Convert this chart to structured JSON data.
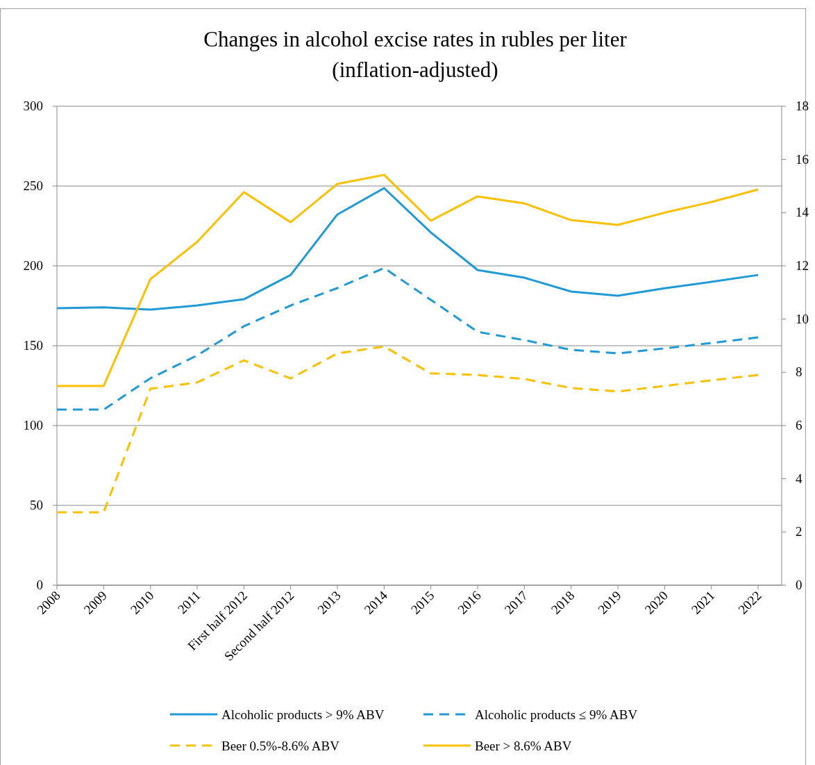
{
  "chart_data": {
    "type": "line",
    "title": "Changes in alcohol excise rates in rubles per liter\n(inflation-adjusted)",
    "categories": [
      "2008",
      "2009",
      "2010",
      "2011",
      "First half 2012",
      "Second half 2012",
      "2013",
      "2014",
      "2015",
      "2016",
      "2017",
      "2018",
      "2019",
      "2020",
      "2021",
      "2022"
    ],
    "series": [
      {
        "name": "Alcoholic products > 9% ABV",
        "color": "#1f9ad6",
        "line_style": "solid",
        "values": [
          173.5,
          174,
          172.6,
          175.2,
          179.1,
          194.3,
          232.2,
          248.7,
          220.9,
          197.4,
          192.6,
          183.9,
          181.3,
          186,
          190,
          194.3
        ]
      },
      {
        "name": "Alcoholic products ≤ 9% ABV",
        "color": "#1f9ad6",
        "line_style": "dashed",
        "values": [
          110,
          110,
          129.6,
          143.9,
          162.2,
          175.2,
          186.1,
          198.7,
          178.7,
          158.7,
          153.5,
          147.4,
          145.2,
          148.3,
          151.7,
          155.2
        ]
      },
      {
        "name": "Beer 0.5%-8.6% ABV",
        "color": "#ffc000",
        "line_style": "dashed",
        "axis": "y2",
        "values": [
          2.74,
          2.74,
          7.38,
          7.62,
          8.45,
          7.77,
          8.71,
          8.97,
          7.96,
          7.9,
          7.75,
          7.41,
          7.28,
          7.49,
          7.7,
          7.9
        ]
      },
      {
        "name": "Beer > 8.6% ABV",
        "color": "#ffc000",
        "line_style": "solid",
        "axis": "y2",
        "values": [
          7.49,
          7.49,
          11.5,
          12.9,
          14.77,
          13.64,
          15.08,
          15.42,
          13.7,
          14.61,
          14.35,
          13.72,
          13.54,
          14,
          14.4,
          14.87
        ]
      }
    ],
    "ylim": [
      0,
      300
    ],
    "yticks": [
      0,
      50,
      100,
      150,
      200,
      250,
      300
    ],
    "y2lim": [
      0,
      18
    ],
    "y2ticks": [
      0,
      2,
      4,
      6,
      8,
      10,
      12,
      14,
      16,
      18
    ],
    "grid": "y",
    "legend": "bottom",
    "marker": "none"
  }
}
